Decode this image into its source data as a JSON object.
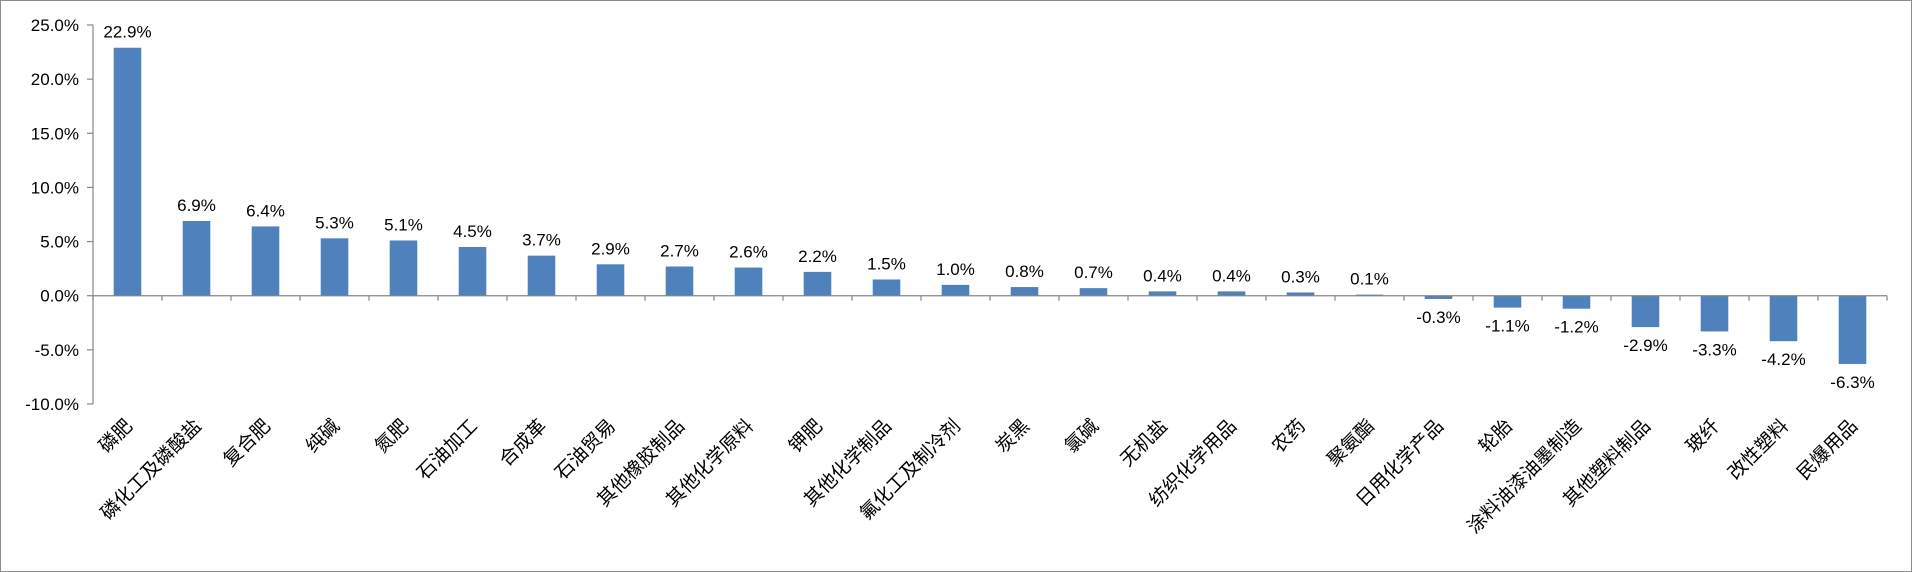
{
  "chart_data": {
    "type": "bar",
    "title": "",
    "xlabel": "",
    "ylabel": "",
    "ylim": [
      -10,
      25
    ],
    "yticks": [
      25,
      20,
      15,
      10,
      5,
      0,
      -5,
      -10
    ],
    "ytick_labels": [
      "25.0%",
      "20.0%",
      "15.0%",
      "10.0%",
      "5.0%",
      "0.0%",
      "-5.0%",
      "-10.0%"
    ],
    "grid": false,
    "legend": "none",
    "bar_color": "#4f81bd",
    "categories": [
      "磷肥",
      "磷化工及磷酸盐",
      "复合肥",
      "纯碱",
      "氮肥",
      "石油加工",
      "合成革",
      "石油贸易",
      "其他橡胶制品",
      "其他化学原料",
      "钾肥",
      "其他化学制品",
      "氟化工及制冷剂",
      "炭黑",
      "氯碱",
      "无机盐",
      "纺织化学用品",
      "农药",
      "聚氨酯",
      "日用化学产品",
      "轮胎",
      "涂料油漆油墨制造",
      "其他塑料制品",
      "玻纤",
      "改性塑料",
      "民爆用品"
    ],
    "values": [
      22.9,
      6.9,
      6.4,
      5.3,
      5.1,
      4.5,
      3.7,
      2.9,
      2.7,
      2.6,
      2.2,
      1.5,
      1.0,
      0.8,
      0.7,
      0.4,
      0.4,
      0.3,
      0.1,
      -0.3,
      -1.1,
      -1.2,
      -2.9,
      -3.3,
      -4.2,
      -6.3
    ],
    "data_labels": [
      "22.9%",
      "6.9%",
      "6.4%",
      "5.3%",
      "5.1%",
      "4.5%",
      "3.7%",
      "2.9%",
      "2.7%",
      "2.6%",
      "2.2%",
      "1.5%",
      "1.0%",
      "0.8%",
      "0.7%",
      "0.4%",
      "0.4%",
      "0.3%",
      "0.1%",
      "-0.3%",
      "-1.1%",
      "-1.2%",
      "-2.9%",
      "-3.3%",
      "-4.2%",
      "-6.3%"
    ]
  }
}
